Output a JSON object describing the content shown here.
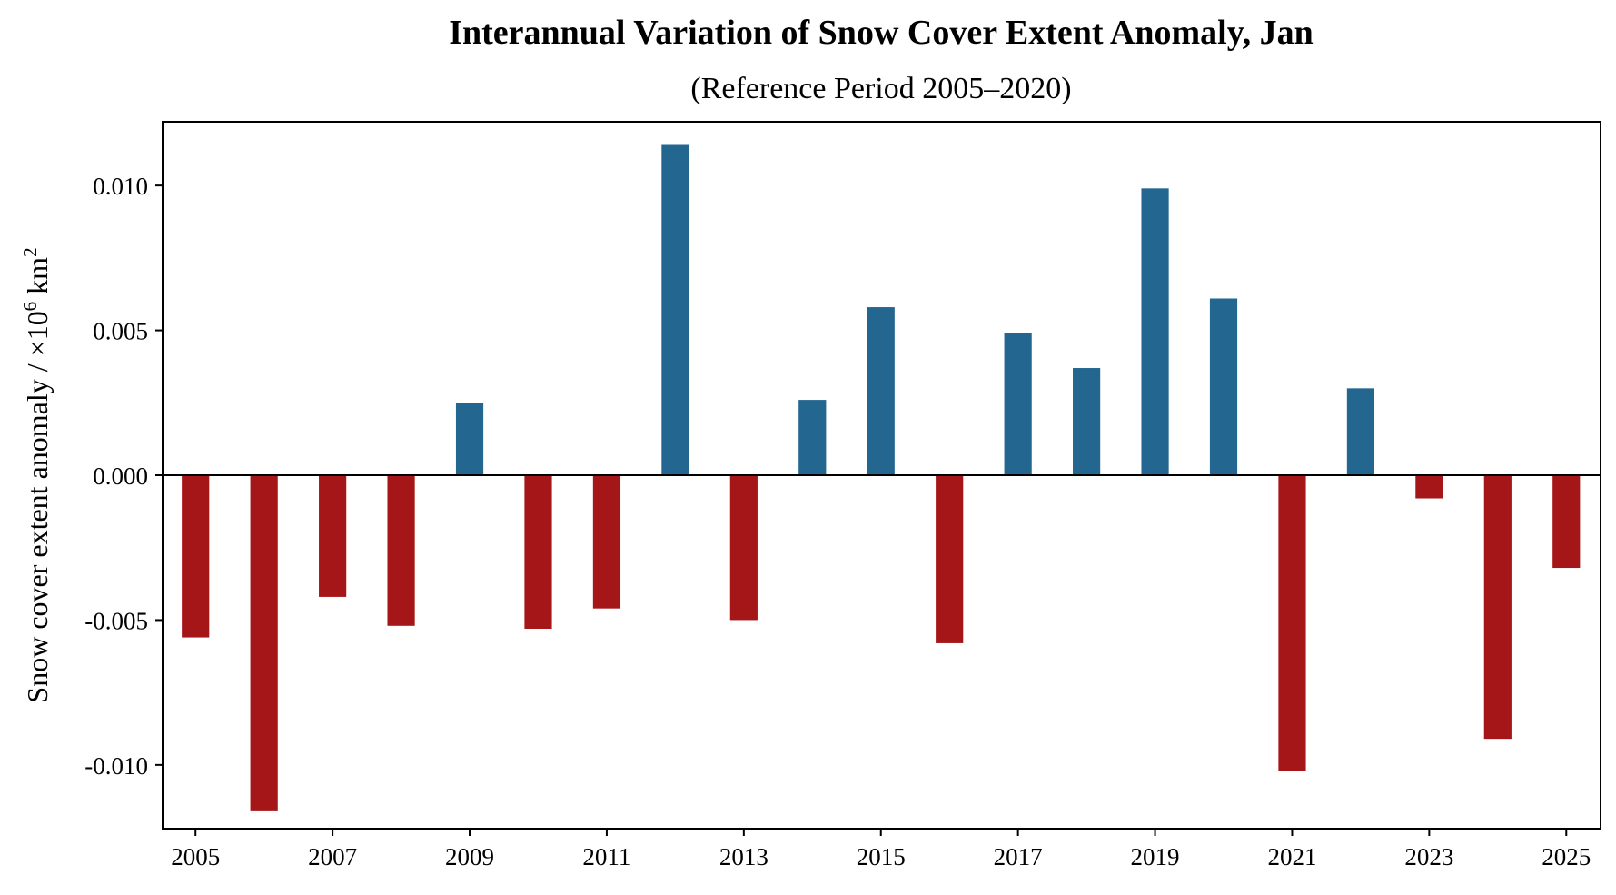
{
  "chart_data": {
    "type": "bar",
    "title": "Interannual Variation of Snow Cover Extent Anomaly, Jan",
    "subtitle": "(Reference Period 2005–2020)",
    "xlabel": "",
    "ylabel": "Snow cover extent anomaly / ×10",
    "ylabel_sup1": "6",
    "ylabel_mid": " km",
    "ylabel_sup2": "2",
    "categories": [
      2005,
      2006,
      2007,
      2008,
      2009,
      2010,
      2011,
      2012,
      2013,
      2014,
      2015,
      2016,
      2017,
      2018,
      2019,
      2020,
      2021,
      2022,
      2023,
      2024,
      2025
    ],
    "values": [
      -0.0056,
      -0.0116,
      -0.0042,
      -0.0052,
      0.0025,
      -0.0053,
      -0.0046,
      0.0114,
      -0.005,
      0.0026,
      0.0058,
      -0.0058,
      0.0049,
      0.0037,
      0.0099,
      0.0061,
      -0.0102,
      0.003,
      -0.0008,
      -0.0091,
      -0.0032
    ],
    "xlim": [
      2004.52,
      2025.5
    ],
    "ylim": [
      -0.0122,
      0.0122
    ],
    "xticks": [
      2005,
      2007,
      2009,
      2011,
      2013,
      2015,
      2017,
      2019,
      2021,
      2023,
      2025
    ],
    "xtick_labels": [
      "2005",
      "2007",
      "2009",
      "2011",
      "2013",
      "2015",
      "2017",
      "2019",
      "2021",
      "2023",
      "2025"
    ],
    "yticks": [
      -0.01,
      -0.005,
      0,
      0.005,
      0.01
    ],
    "ytick_labels": [
      "-0.010",
      "-0.005",
      "0.000",
      "0.005",
      "0.010"
    ],
    "bar_width": 0.4,
    "grid": false,
    "colors": {
      "positive": "#23668f",
      "negative": "#a51618"
    }
  }
}
